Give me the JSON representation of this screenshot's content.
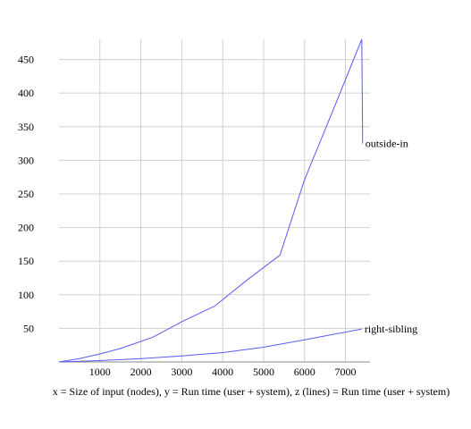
{
  "chart_data": {
    "type": "line",
    "xlabel": "x = Size of input (nodes), y = Run time (user + system), z (lines) = Run time (user + system)",
    "ylabel": "",
    "xlim": [
      0,
      7600
    ],
    "ylim": [
      0,
      480
    ],
    "x_ticks": [
      1000,
      2000,
      3000,
      4000,
      5000,
      6000,
      7000
    ],
    "y_ticks": [
      50,
      100,
      150,
      200,
      250,
      300,
      350,
      400,
      450
    ],
    "grid": true,
    "line_color": "#5a5af0",
    "series": [
      {
        "name": "outside-in",
        "x": [
          0,
          500,
          1000,
          1500,
          2300,
          3000,
          3800,
          4600,
          5400,
          6000,
          6700,
          7400,
          7420
        ],
        "y": [
          0,
          5,
          12,
          20,
          37,
          60,
          83,
          122,
          159,
          271,
          375,
          480,
          325
        ]
      },
      {
        "name": "right-sibling",
        "x": [
          0,
          1000,
          2000,
          3000,
          4000,
          5000,
          6000,
          7400
        ],
        "y": [
          0,
          2,
          5,
          9,
          14,
          22,
          33,
          49
        ]
      }
    ]
  }
}
